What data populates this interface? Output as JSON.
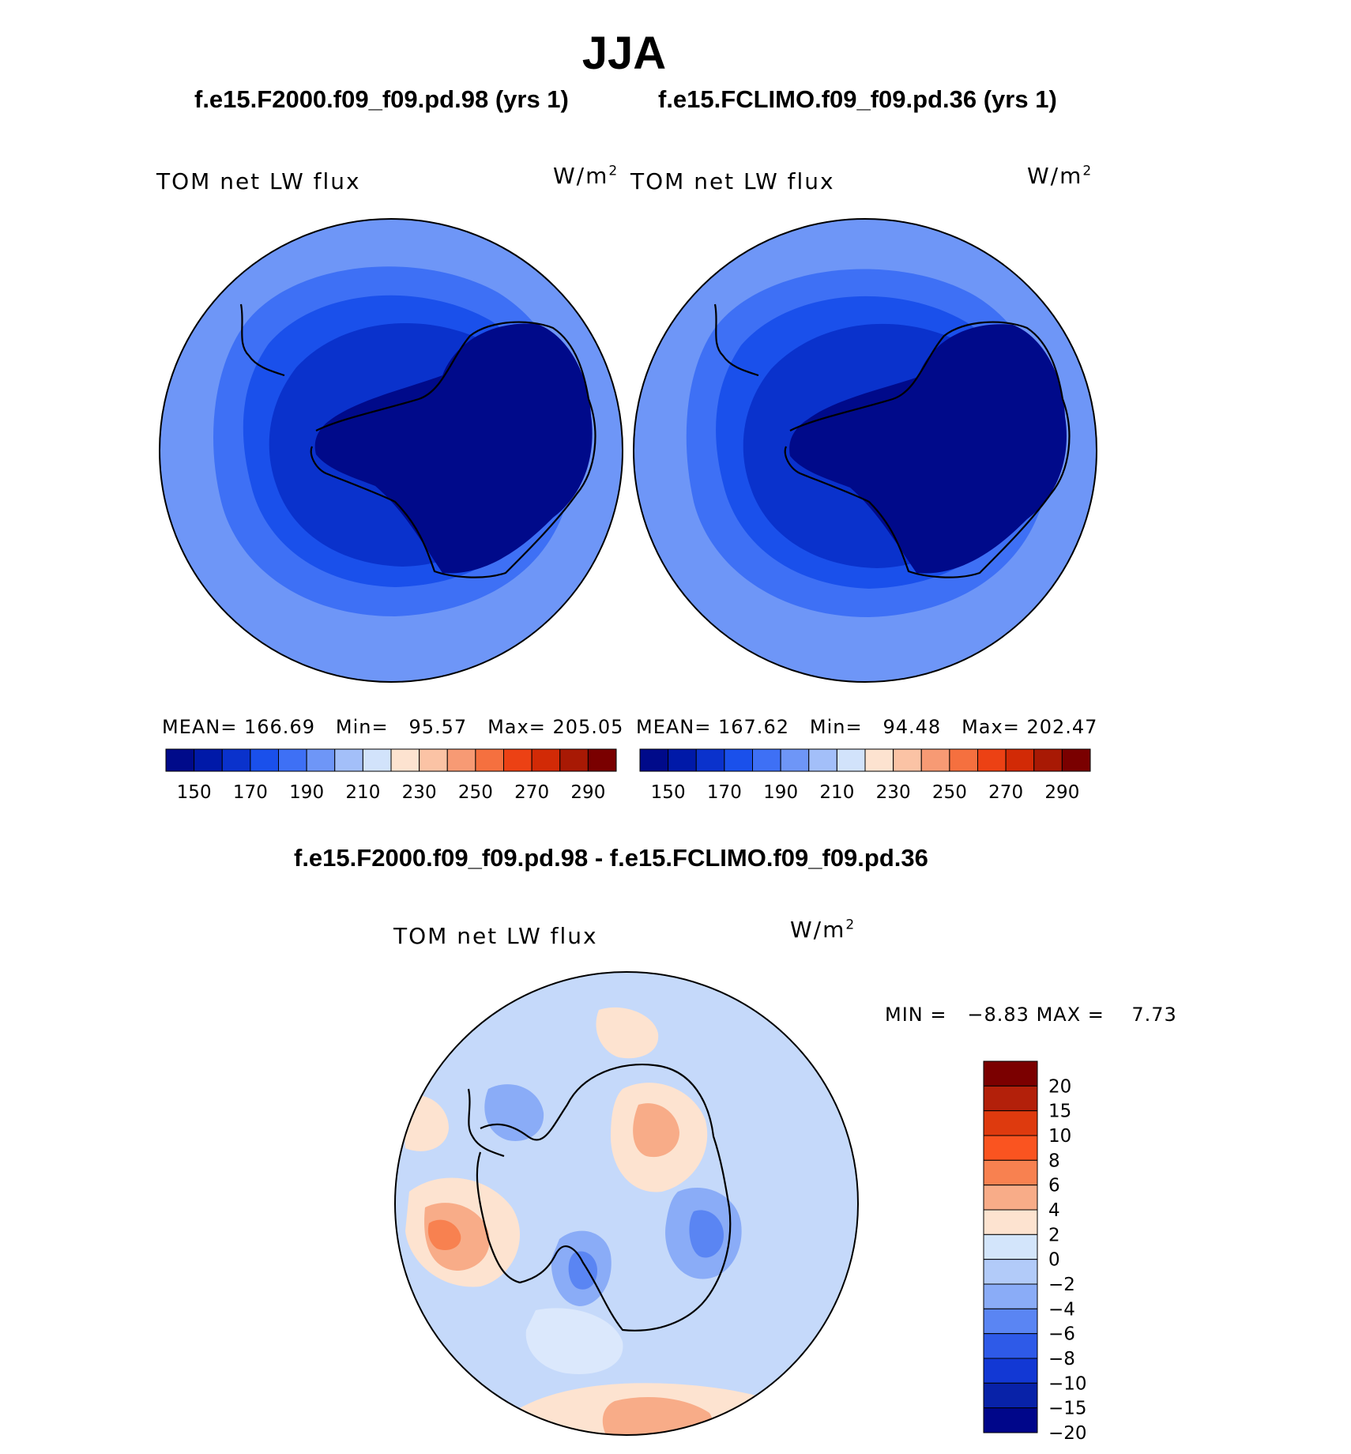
{
  "title": "JJA",
  "panels": [
    {
      "case": "f.e15.F2000.f09_f09.pd.98 (yrs 1)",
      "variable": "TOM net LW flux",
      "units_base": "W/m",
      "units_exp": "2",
      "mean_label": "MEAN=",
      "mean": "166.69",
      "min_label": "Min=",
      "min": "95.57",
      "max_label": "Max=",
      "max": "205.05"
    },
    {
      "case": "f.e15.FCLIMO.f09_f09.pd.36 (yrs 1)",
      "variable": "TOM net LW flux",
      "units_base": "W/m",
      "units_exp": "2",
      "mean_label": "MEAN=",
      "mean": "167.62",
      "min_label": "Min=",
      "min": "94.48",
      "max_label": "Max=",
      "max": "202.47"
    }
  ],
  "diff_panel": {
    "title": "f.e15.F2000.f09_f09.pd.98 - f.e15.FCLIMO.f09_f09.pd.36",
    "variable": "TOM net LW flux",
    "units_base": "W/m",
    "units_exp": "2",
    "min_label": "MIN =",
    "min": "−8.83",
    "max_label": "MAX =",
    "max": "7.73"
  },
  "colorbar_abs": {
    "colors": [
      "#000a8a",
      "#0019a8",
      "#0a32cc",
      "#1a50eb",
      "#3e70f5",
      "#6e96f7",
      "#a3bff9",
      "#d2e3fb",
      "#fde3d0",
      "#fbc3a5",
      "#f79a74",
      "#f5703f",
      "#ec4114",
      "#d22a06",
      "#a81904",
      "#7a0000"
    ],
    "labels": [
      "150",
      "170",
      "190",
      "210",
      "230",
      "250",
      "270",
      "290"
    ]
  },
  "colorbar_diff": {
    "colors": [
      "#7b0000",
      "#b3200a",
      "#de3a0e",
      "#fa5420",
      "#f88150",
      "#f8ac88",
      "#fde3d0",
      "#d3e5fb",
      "#b2cbf9",
      "#8aacf7",
      "#5a85f3",
      "#2e5ae8",
      "#1238d4",
      "#0822a8",
      "#00068a"
    ],
    "labels": [
      "20",
      "15",
      "10",
      "8",
      "6",
      "4",
      "2",
      "0",
      "−2",
      "−4",
      "−6",
      "−8",
      "−10",
      "−15",
      "−20"
    ]
  },
  "map_colors": {
    "abs_outer": "#6e96f7",
    "abs_ring1": "#3e70f5",
    "abs_ring2": "#1a50eb",
    "abs_ring3": "#0a32cc",
    "abs_core": "#000a8a",
    "diff_bg": "#c5d9fa",
    "diff_warm": "#f8ac88",
    "diff_warm2": "#f88150",
    "diff_light": "#fde3d0",
    "diff_cool": "#8aacf7",
    "diff_cool2": "#5a85f3",
    "diff_pale": "#dbe8fc"
  }
}
